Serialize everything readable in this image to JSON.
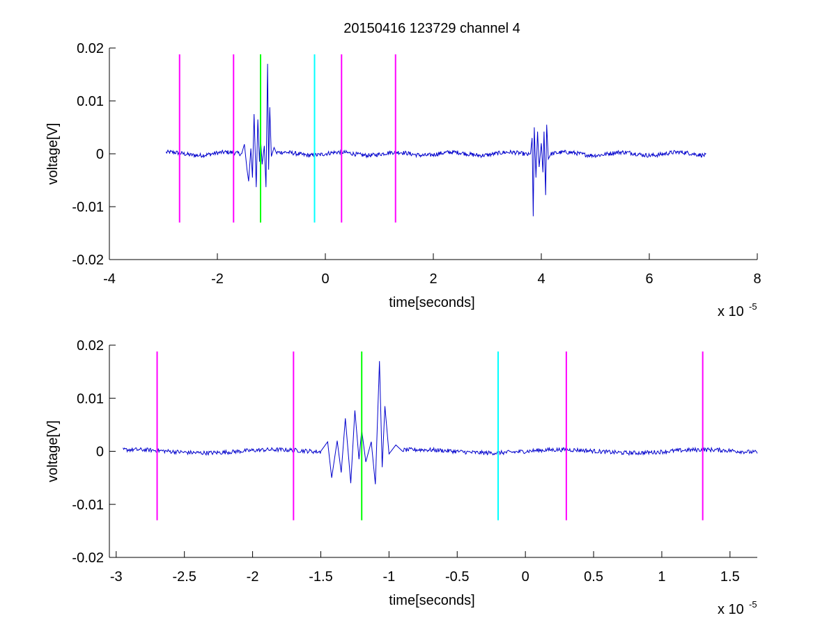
{
  "figure": {
    "title": "20150416 123729 channel 4"
  },
  "chart_data": [
    {
      "type": "line",
      "xlabel": "time[seconds]",
      "ylabel": "voltage[V]",
      "x_exponent_label": "x 10",
      "x_exponent": "-5",
      "xlim": [
        -4,
        8
      ],
      "ylim": [
        -0.02,
        0.02
      ],
      "x_ticks": [
        -4,
        -2,
        0,
        2,
        4,
        6,
        8
      ],
      "x_tick_labels": [
        "-4",
        "-2",
        "0",
        "2",
        "4",
        "6",
        "8"
      ],
      "y_ticks": [
        -0.02,
        -0.01,
        0,
        0.01,
        0.02
      ],
      "y_tick_labels": [
        "-0.02",
        "-0.01",
        "0",
        "0.01",
        "0.02"
      ],
      "grid": false,
      "waveform_range": [
        -2.95,
        7.05
      ],
      "signal_color": "#0000cc",
      "bursts": [
        {
          "x": [
            -1.55,
            -1.5,
            -1.45,
            -1.42,
            -1.38,
            -1.35,
            -1.32,
            -1.28,
            -1.25,
            -1.22,
            -1.2,
            -1.17,
            -1.13,
            -1.1,
            -1.07,
            -1.05,
            -1.03,
            -1.0,
            -0.95,
            -0.9
          ],
          "y": [
            0.0,
            0.0018,
            -0.003,
            -0.0052,
            0.001,
            -0.0045,
            0.0075,
            -0.0063,
            0.0065,
            -0.0015,
            0.003,
            -0.002,
            0.0015,
            -0.0063,
            0.017,
            -0.003,
            0.0088,
            -0.0005,
            0.0012,
            0.0
          ]
        },
        {
          "x": [
            3.8,
            3.83,
            3.85,
            3.87,
            3.9,
            3.93,
            3.96,
            4.0,
            4.03,
            4.05,
            4.08,
            4.1,
            4.13,
            4.18
          ],
          "y": [
            0.0,
            0.003,
            -0.0118,
            0.005,
            -0.0045,
            0.0042,
            -0.0025,
            0.002,
            -0.0035,
            0.0042,
            -0.0078,
            0.0055,
            -0.001,
            0.0
          ]
        }
      ],
      "markers": [
        {
          "x": -2.7,
          "color": "#ff00ff"
        },
        {
          "x": -1.7,
          "color": "#ff00ff"
        },
        {
          "x": -1.2,
          "color": "#00ff00"
        },
        {
          "x": -0.2,
          "color": "#00ffff"
        },
        {
          "x": 0.3,
          "color": "#ff00ff"
        },
        {
          "x": 1.3,
          "color": "#ff00ff"
        }
      ],
      "marker_range": [
        -0.013,
        0.0188
      ]
    },
    {
      "type": "line",
      "xlabel": "time[seconds]",
      "ylabel": "voltage[V]",
      "x_exponent_label": "x 10",
      "x_exponent": "-5",
      "xlim": [
        -3.05,
        1.7
      ],
      "ylim": [
        -0.02,
        0.02
      ],
      "x_ticks": [
        -3,
        -2.5,
        -2,
        -1.5,
        -1,
        -0.5,
        0,
        0.5,
        1,
        1.5
      ],
      "x_tick_labels": [
        "-3",
        "-2.5",
        "-2",
        "-1.5",
        "-1",
        "-0.5",
        "0",
        "0.5",
        "1",
        "1.5"
      ],
      "y_ticks": [
        -0.02,
        -0.01,
        0,
        0.01,
        0.02
      ],
      "y_tick_labels": [
        "-0.02",
        "-0.01",
        "0",
        "0.01",
        "0.02"
      ],
      "grid": false,
      "waveform_range": [
        -2.95,
        1.7
      ],
      "signal_color": "#0000cc",
      "bursts": [
        {
          "x": [
            -1.5,
            -1.45,
            -1.42,
            -1.38,
            -1.35,
            -1.32,
            -1.28,
            -1.25,
            -1.22,
            -1.2,
            -1.17,
            -1.13,
            -1.1,
            -1.07,
            -1.05,
            -1.03,
            -1.0,
            -0.95,
            -0.9
          ],
          "y": [
            0.0,
            0.0018,
            -0.005,
            0.002,
            -0.004,
            0.0062,
            -0.006,
            0.0077,
            -0.0015,
            0.004,
            -0.002,
            0.0018,
            -0.0062,
            0.017,
            -0.003,
            0.0085,
            -0.0005,
            0.0012,
            0.0
          ]
        }
      ],
      "markers": [
        {
          "x": -2.7,
          "color": "#ff00ff"
        },
        {
          "x": -1.7,
          "color": "#ff00ff"
        },
        {
          "x": -1.2,
          "color": "#00ff00"
        },
        {
          "x": -0.2,
          "color": "#00ffff"
        },
        {
          "x": 0.3,
          "color": "#ff00ff"
        },
        {
          "x": 1.3,
          "color": "#ff00ff"
        }
      ],
      "marker_range": [
        -0.013,
        0.0188
      ]
    }
  ]
}
